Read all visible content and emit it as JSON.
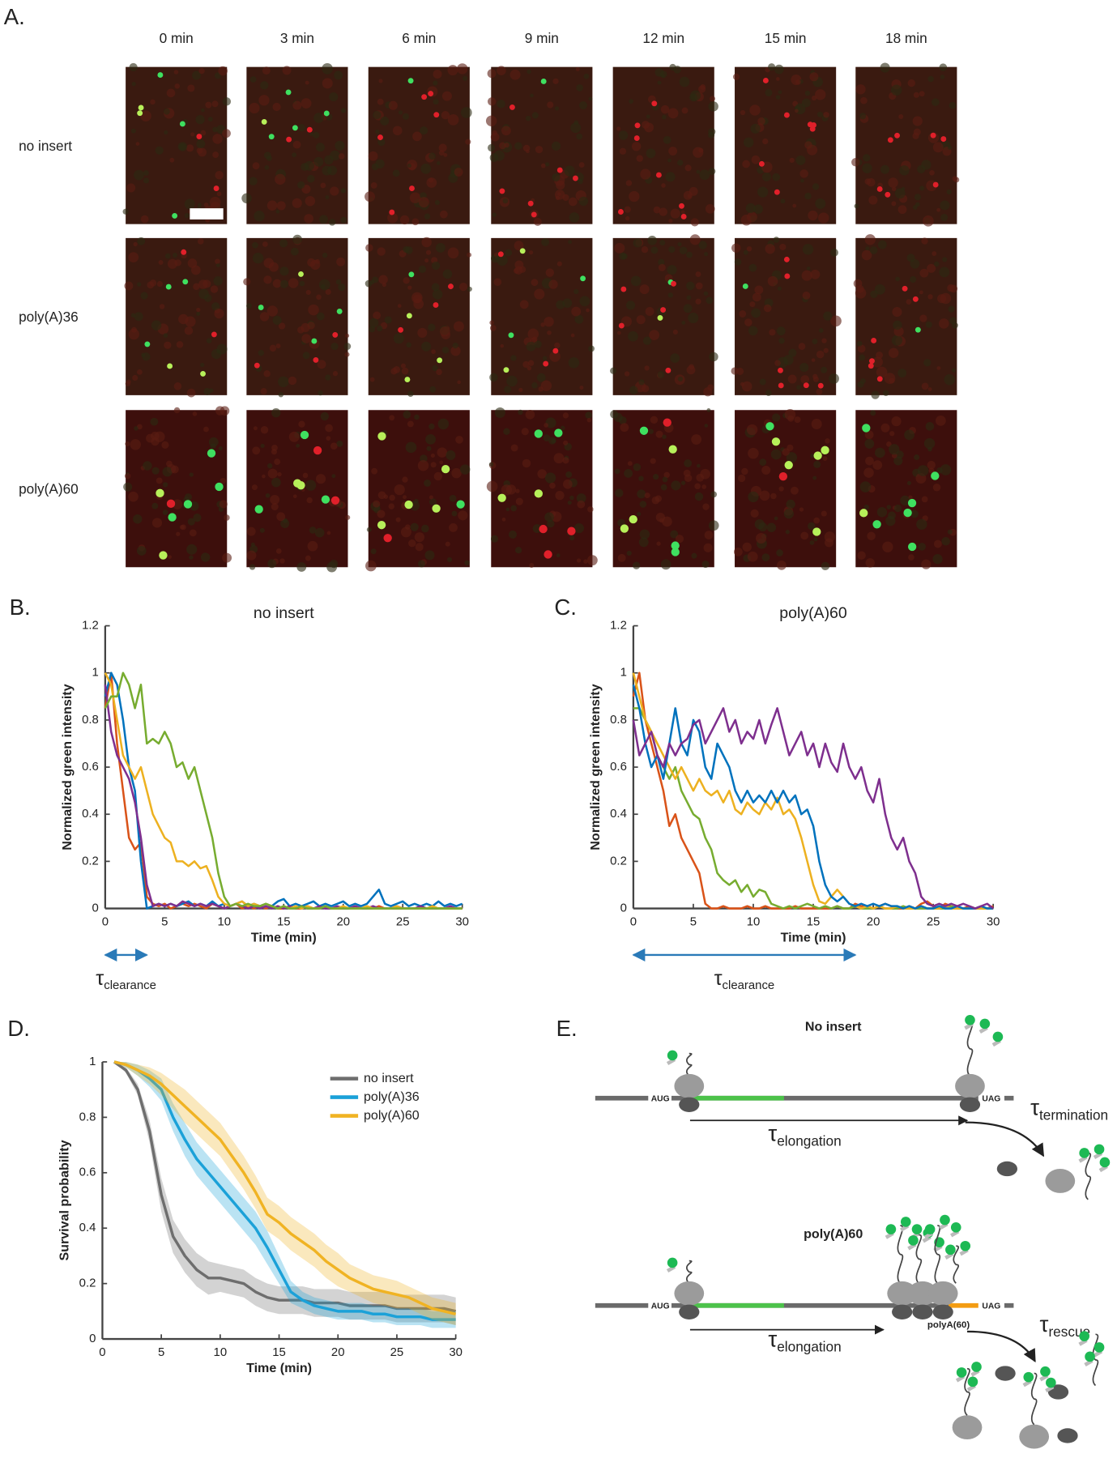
{
  "panel_a": {
    "label": "A.",
    "time_labels": [
      "0 min",
      "3 min",
      "6 min",
      "9 min",
      "12 min",
      "15 min",
      "18 min"
    ],
    "row_labels": [
      "no insert",
      "poly(A)36",
      "poly(A)60"
    ]
  },
  "chart_data": [
    {
      "type": "line",
      "panel_label": "B.",
      "title": "no insert",
      "xlabel": "Time (min)",
      "ylabel": "Normalized green intensity",
      "xlim": [
        0,
        30
      ],
      "ylim": [
        0,
        1.2
      ],
      "xticks": [
        0,
        5,
        10,
        15,
        20,
        25,
        30
      ],
      "yticks": [
        0,
        0.2,
        0.4,
        0.6,
        0.8,
        1,
        1.2
      ],
      "x": [
        0,
        0.5,
        1,
        1.5,
        2,
        2.5,
        3,
        3.5,
        4,
        4.5,
        5,
        5.5,
        6,
        6.5,
        7,
        7.5,
        8,
        8.5,
        9,
        9.5,
        10,
        10.5,
        11,
        11.5,
        12,
        12.5,
        13,
        13.5,
        14,
        14.5,
        15,
        15.5,
        16,
        16.5,
        17,
        17.5,
        18,
        18.5,
        19,
        19.5,
        20,
        20.5,
        21,
        21.5,
        22,
        22.5,
        23,
        23.5,
        24,
        24.5,
        25,
        25.5,
        26,
        26.5,
        27,
        27.5,
        28,
        28.5,
        29,
        29.5,
        30
      ],
      "series": [
        {
          "color": "#d95319",
          "values": [
            0.85,
            1,
            0.7,
            0.5,
            0.3,
            0.25,
            0.28,
            0.05,
            0.02,
            0.01,
            0.02,
            0,
            0.01,
            0.02,
            0.01,
            0.02,
            0.01,
            0,
            0.02,
            0.01,
            0,
            0.01,
            0.02,
            0,
            0.01,
            0,
            0.01,
            0,
            0.01,
            0,
            0,
            0.01,
            0,
            0,
            0.01,
            0,
            0,
            0.01,
            0,
            0,
            0,
            0,
            0.01,
            0,
            0,
            0,
            0.01,
            0,
            0,
            0,
            0,
            0,
            0,
            0.01,
            0,
            0,
            0,
            0,
            0,
            0,
            0
          ]
        },
        {
          "color": "#0072bd",
          "values": [
            0.9,
            1,
            0.95,
            0.8,
            0.6,
            0.5,
            0.2,
            0,
            0.01,
            0.02,
            0.01,
            0.02,
            0.01,
            0.02,
            0.03,
            0.01,
            0.02,
            0.01,
            0.03,
            0.01,
            0.02,
            0.01,
            0.02,
            0.03,
            0.01,
            0.02,
            0.01,
            0.02,
            0.01,
            0.03,
            0.04,
            0.01,
            0.02,
            0.01,
            0.02,
            0.03,
            0.01,
            0.02,
            0.01,
            0.02,
            0.03,
            0.01,
            0.02,
            0.01,
            0.02,
            0.05,
            0.08,
            0.02,
            0.01,
            0.02,
            0.03,
            0.01,
            0.02,
            0.01,
            0.02,
            0.01,
            0.03,
            0.01,
            0.02,
            0.01,
            0.02
          ]
        },
        {
          "color": "#7e2f8e",
          "values": [
            0.95,
            0.75,
            0.65,
            0.6,
            0.55,
            0.45,
            0.3,
            0.1,
            0.01,
            0.02,
            0.01,
            0.02,
            0.01,
            0.03,
            0.02,
            0.01,
            0.02,
            0.01,
            0.02,
            0.01,
            0,
            0.01,
            0.02,
            0.01,
            0,
            0.01,
            0,
            0.01,
            0,
            0.01,
            0,
            0.01,
            0,
            0.01,
            0,
            0,
            0.01,
            0,
            0,
            0.01,
            0,
            0,
            0.01,
            0,
            0,
            0.01,
            0,
            0,
            0,
            0.01,
            0,
            0,
            0,
            0.01,
            0,
            0,
            0,
            0,
            0.01,
            0,
            0
          ]
        },
        {
          "color": "#edb120",
          "values": [
            1,
            0.95,
            0.8,
            0.65,
            0.6,
            0.55,
            0.6,
            0.5,
            0.4,
            0.35,
            0.3,
            0.28,
            0.2,
            0.2,
            0.18,
            0.2,
            0.17,
            0.18,
            0.12,
            0.05,
            0.02,
            0.01,
            0.02,
            0.03,
            0.01,
            0.02,
            0.01,
            0.02,
            0.01,
            0,
            0.01,
            0,
            0.01,
            0,
            0.01,
            0,
            0,
            0.01,
            0,
            0,
            0.01,
            0,
            0,
            0,
            0.01,
            0,
            0,
            0,
            0,
            0.01,
            0,
            0,
            0,
            0,
            0,
            0.01,
            0,
            0,
            0,
            0,
            0
          ]
        },
        {
          "color": "#77ac30",
          "values": [
            0.85,
            0.9,
            0.9,
            1,
            0.95,
            0.85,
            0.95,
            0.7,
            0.72,
            0.7,
            0.75,
            0.7,
            0.6,
            0.62,
            0.55,
            0.6,
            0.5,
            0.4,
            0.3,
            0.15,
            0.05,
            0.01,
            0.02,
            0.01,
            0.02,
            0.01,
            0.01,
            0.02,
            0.01,
            0,
            0.01,
            0,
            0,
            0.01,
            0,
            0,
            0,
            0.01,
            0,
            0,
            0,
            0,
            0,
            0,
            0,
            0,
            0,
            0,
            0,
            0,
            0,
            0,
            0,
            0,
            0,
            0,
            0,
            0,
            0,
            0,
            0
          ]
        }
      ],
      "annotation": {
        "symbol": "τ",
        "subscript": "clearance",
        "from": 0,
        "to": 3.5
      }
    },
    {
      "type": "line",
      "panel_label": "C.",
      "title": "poly(A)60",
      "xlabel": "Time (min)",
      "ylabel": "Normalized green intensity",
      "xlim": [
        0,
        30
      ],
      "ylim": [
        0,
        1.2
      ],
      "xticks": [
        0,
        5,
        10,
        15,
        20,
        25,
        30
      ],
      "yticks": [
        0,
        0.2,
        0.4,
        0.6,
        0.8,
        1,
        1.2
      ],
      "x": [
        0,
        0.5,
        1,
        1.5,
        2,
        2.5,
        3,
        3.5,
        4,
        4.5,
        5,
        5.5,
        6,
        6.5,
        7,
        7.5,
        8,
        8.5,
        9,
        9.5,
        10,
        10.5,
        11,
        11.5,
        12,
        12.5,
        13,
        13.5,
        14,
        14.5,
        15,
        15.5,
        16,
        16.5,
        17,
        17.5,
        18,
        18.5,
        19,
        19.5,
        20,
        20.5,
        21,
        21.5,
        22,
        22.5,
        23,
        23.5,
        24,
        24.5,
        25,
        25.5,
        26,
        26.5,
        27,
        27.5,
        28,
        28.5,
        29,
        29.5,
        30
      ],
      "series": [
        {
          "color": "#d95319",
          "values": [
            0.9,
            1,
            0.8,
            0.7,
            0.6,
            0.5,
            0.35,
            0.4,
            0.3,
            0.25,
            0.2,
            0.15,
            0.02,
            0,
            0,
            0.01,
            0,
            0,
            0,
            0.01,
            0,
            0,
            0.01,
            0,
            0,
            0,
            0,
            0.01,
            0,
            0,
            0,
            0,
            0,
            0,
            0.01,
            0,
            0,
            0.02,
            0.01,
            0.01,
            0,
            0.01,
            0.02,
            0.01,
            0,
            0,
            0.01,
            0,
            0.02,
            0.03,
            0.01,
            0,
            0.02,
            0.01,
            0,
            0,
            0.01,
            0,
            0,
            0,
            0.01
          ]
        },
        {
          "color": "#77ac30",
          "values": [
            0.85,
            0.85,
            0.8,
            0.75,
            0.65,
            0.6,
            0.55,
            0.6,
            0.5,
            0.45,
            0.4,
            0.38,
            0.3,
            0.25,
            0.15,
            0.12,
            0.1,
            0.12,
            0.07,
            0.1,
            0.05,
            0.08,
            0.07,
            0.02,
            0.01,
            0,
            0.01,
            0,
            0.01,
            0.02,
            0.01,
            0,
            0.01,
            0,
            0.01,
            0,
            0,
            0.01,
            0,
            0,
            0,
            0.01,
            0,
            0,
            0,
            0.01,
            0,
            0,
            0,
            0,
            0,
            0,
            0,
            0.01,
            0,
            0,
            0,
            0,
            0,
            0,
            0
          ]
        },
        {
          "color": "#edb120",
          "values": [
            1,
            0.9,
            0.8,
            0.75,
            0.7,
            0.65,
            0.6,
            0.55,
            0.6,
            0.55,
            0.5,
            0.55,
            0.5,
            0.48,
            0.5,
            0.45,
            0.5,
            0.42,
            0.4,
            0.45,
            0.42,
            0.4,
            0.45,
            0.42,
            0.47,
            0.4,
            0.42,
            0.38,
            0.3,
            0.2,
            0.1,
            0.03,
            0.02,
            0.05,
            0.08,
            0.05,
            0.02,
            0.01,
            0,
            0.01,
            0,
            0.01,
            0,
            0,
            0.01,
            0,
            0,
            0,
            0.01,
            0,
            0,
            0,
            0.01,
            0,
            0,
            0,
            0,
            0,
            0,
            0,
            0
          ]
        },
        {
          "color": "#0072bd",
          "values": [
            0.95,
            0.85,
            0.7,
            0.6,
            0.65,
            0.55,
            0.7,
            0.85,
            0.7,
            0.65,
            0.8,
            0.75,
            0.6,
            0.55,
            0.7,
            0.65,
            0.6,
            0.5,
            0.45,
            0.5,
            0.45,
            0.48,
            0.45,
            0.5,
            0.45,
            0.5,
            0.45,
            0.48,
            0.4,
            0.42,
            0.35,
            0.2,
            0.1,
            0.05,
            0.03,
            0.05,
            0.02,
            0.01,
            0.02,
            0.01,
            0.02,
            0.01,
            0.02,
            0.01,
            0.01,
            0,
            0.01,
            0,
            0.01,
            0,
            0,
            0.01,
            0,
            0,
            0.01,
            0,
            0,
            0,
            0.01,
            0,
            0
          ]
        },
        {
          "color": "#7e2f8e",
          "values": [
            0.8,
            0.65,
            0.7,
            0.75,
            0.65,
            0.6,
            0.7,
            0.65,
            0.7,
            0.72,
            0.78,
            0.8,
            0.7,
            0.75,
            0.8,
            0.85,
            0.75,
            0.8,
            0.7,
            0.75,
            0.72,
            0.8,
            0.7,
            0.78,
            0.85,
            0.75,
            0.65,
            0.7,
            0.75,
            0.65,
            0.7,
            0.6,
            0.7,
            0.62,
            0.58,
            0.7,
            0.6,
            0.55,
            0.6,
            0.5,
            0.45,
            0.55,
            0.4,
            0.3,
            0.25,
            0.3,
            0.2,
            0.15,
            0.05,
            0.02,
            0.01,
            0.02,
            0.01,
            0.02,
            0.01,
            0.02,
            0.01,
            0,
            0.01,
            0.02,
            0
          ]
        }
      ],
      "annotation": {
        "symbol": "τ",
        "subscript": "clearance",
        "from": 0,
        "to": 18.5
      }
    },
    {
      "type": "line",
      "panel_label": "D.",
      "xlabel": "Time (min)",
      "ylabel": "Survival probability",
      "legend": "upper right",
      "xlim": [
        0,
        30
      ],
      "ylim": [
        0,
        1
      ],
      "xticks": [
        0,
        5,
        10,
        15,
        20,
        25,
        30
      ],
      "yticks": [
        0,
        0.2,
        0.4,
        0.6,
        0.8,
        1
      ],
      "x": [
        1,
        2,
        3,
        4,
        5,
        6,
        7,
        8,
        9,
        10,
        11,
        12,
        13,
        14,
        15,
        16,
        17,
        18,
        19,
        20,
        21,
        22,
        23,
        24,
        25,
        26,
        27,
        28,
        29,
        30
      ],
      "series": [
        {
          "name": "no insert",
          "color": "#6e6e6e",
          "values": [
            1,
            0.97,
            0.9,
            0.75,
            0.52,
            0.37,
            0.3,
            0.25,
            0.22,
            0.22,
            0.21,
            0.2,
            0.17,
            0.15,
            0.14,
            0.14,
            0.14,
            0.13,
            0.13,
            0.13,
            0.12,
            0.12,
            0.12,
            0.12,
            0.11,
            0.11,
            0.11,
            0.11,
            0.11,
            0.1
          ],
          "error": [
            0,
            0.01,
            0.02,
            0.04,
            0.06,
            0.06,
            0.06,
            0.06,
            0.06,
            0.05,
            0.05,
            0.05,
            0.05,
            0.05,
            0.05,
            0.05,
            0.05,
            0.05,
            0.05,
            0.05,
            0.05,
            0.05,
            0.05,
            0.05,
            0.05,
            0.05,
            0.05,
            0.05,
            0.05,
            0.05
          ]
        },
        {
          "name": "poly(A)36",
          "color": "#1ba1d8",
          "values": [
            1,
            0.99,
            0.97,
            0.94,
            0.9,
            0.8,
            0.72,
            0.65,
            0.6,
            0.55,
            0.5,
            0.45,
            0.4,
            0.33,
            0.25,
            0.17,
            0.14,
            0.12,
            0.11,
            0.1,
            0.1,
            0.1,
            0.09,
            0.09,
            0.08,
            0.08,
            0.08,
            0.07,
            0.07,
            0.07
          ],
          "error": [
            0,
            0.01,
            0.02,
            0.03,
            0.04,
            0.05,
            0.06,
            0.06,
            0.06,
            0.06,
            0.06,
            0.06,
            0.06,
            0.06,
            0.05,
            0.04,
            0.03,
            0.03,
            0.03,
            0.03,
            0.03,
            0.03,
            0.03,
            0.03,
            0.03,
            0.03,
            0.03,
            0.03,
            0.03,
            0.03
          ]
        },
        {
          "name": "poly(A)60",
          "color": "#f0b323",
          "values": [
            1,
            0.99,
            0.97,
            0.95,
            0.92,
            0.88,
            0.84,
            0.8,
            0.76,
            0.72,
            0.66,
            0.6,
            0.53,
            0.45,
            0.42,
            0.38,
            0.35,
            0.32,
            0.28,
            0.25,
            0.22,
            0.2,
            0.18,
            0.17,
            0.16,
            0.15,
            0.13,
            0.11,
            0.1,
            0.09
          ],
          "error": [
            0,
            0.01,
            0.02,
            0.03,
            0.04,
            0.05,
            0.06,
            0.06,
            0.06,
            0.06,
            0.06,
            0.06,
            0.06,
            0.06,
            0.06,
            0.06,
            0.06,
            0.06,
            0.06,
            0.06,
            0.05,
            0.05,
            0.05,
            0.05,
            0.05,
            0.04,
            0.04,
            0.04,
            0.04,
            0.04
          ]
        }
      ]
    }
  ],
  "panel_e": {
    "label": "E.",
    "constructs": [
      {
        "title": "No insert",
        "start_codon": "AUG",
        "stop_codon": "UAG",
        "tau": "τ",
        "elongation": "elongation",
        "end_step": "termination"
      },
      {
        "title": "poly(A)60",
        "start_codon": "AUG",
        "stop_codon": "UAG",
        "insert": "polyA(60)",
        "tau": "τ",
        "elongation": "elongation",
        "end_step": "rescue"
      }
    ]
  }
}
